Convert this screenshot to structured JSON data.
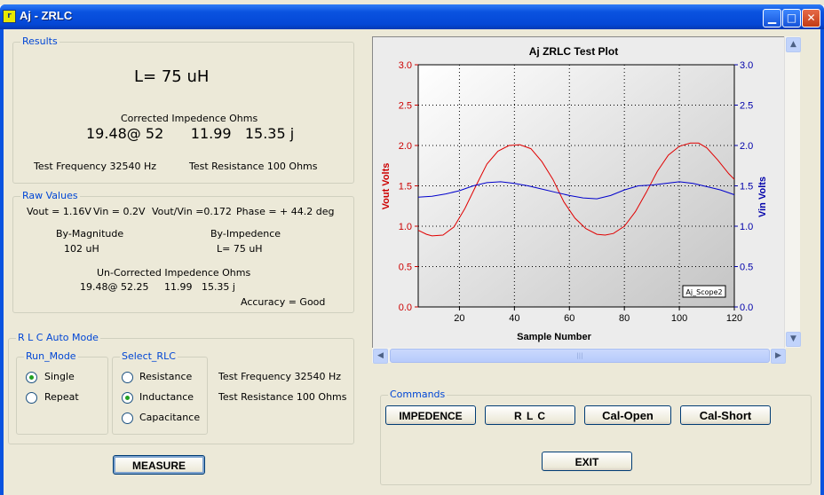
{
  "window": {
    "title": "Aj - ZRLC"
  },
  "results": {
    "legend": "Results",
    "value": "L= 75 uH",
    "corrected_label": "Corrected Impedence Ohms",
    "corrected_values": "19.48@ 52      11.99   15.35 j",
    "test_frequency": "Test Frequency  32540  Hz",
    "test_resistance": "Test Resistance  100 Ohms"
  },
  "raw": {
    "legend": "Raw Values",
    "vout": "Vout = 1.16V",
    "vin": "Vin = 0.2V",
    "ratio": "Vout/Vin =0.172",
    "phase": "Phase = + 44.2 deg",
    "by_magnitude_label": "By-Magnitude",
    "by_magnitude_value": "102 uH",
    "by_impedence_label": "By-Impedence",
    "by_impedence_value": "L= 75 uH",
    "uncorrected_label": "Un-Corrected Impedence Ohms",
    "uncorrected_values": "19.48@ 52.25     11.99   15.35 j",
    "accuracy": "Accuracy = Good"
  },
  "auto": {
    "legend": "R L C Auto Mode",
    "run_mode_legend": "Run_Mode",
    "single": "Single",
    "repeat": "Repeat",
    "run_mode_selected": "Single",
    "select_legend": "Select_RLC",
    "resistance": "Resistance",
    "inductance": "Inductance",
    "capacitance": "Capacitance",
    "select_selected": "Inductance",
    "test_frequency": "Test Frequency  32540  Hz",
    "test_resistance": "Test Resistance  100 Ohms",
    "measure": "MEASURE"
  },
  "commands": {
    "legend": "Commands",
    "impedence": "IMPEDENCE",
    "rlc": "R  L  C",
    "cal_open": "Cal-Open",
    "cal_short": "Cal-Short",
    "exit": "EXIT"
  },
  "chart_data": {
    "type": "line",
    "title": "Aj ZRLC Test Plot",
    "xlabel": "Sample Number",
    "ylabel": "Vout Volts",
    "y2label": "Vin Volts",
    "xlim": [
      5,
      120
    ],
    "ylim": [
      0,
      3
    ],
    "y2lim": [
      0,
      3
    ],
    "xticks": [
      20,
      40,
      60,
      80,
      100,
      120
    ],
    "yticks": [
      "0.0",
      "0.5",
      "1.0",
      "1.5",
      "2.0",
      "2.5",
      "3.0"
    ],
    "grid": true,
    "tag": "Aj_Scope2",
    "colors": {
      "vout": "#e00000",
      "vin": "#0000cc"
    },
    "series": [
      {
        "axis": "left",
        "x": [
          5,
          8,
          10,
          14,
          18,
          22,
          26,
          30,
          34,
          38,
          42,
          46,
          50,
          54,
          58,
          62,
          66,
          70,
          73,
          76,
          80,
          84,
          88,
          92,
          96,
          100,
          104,
          107,
          110,
          114,
          118,
          120
        ],
        "values": [
          0.95,
          0.9,
          0.88,
          0.89,
          0.99,
          1.22,
          1.5,
          1.77,
          1.93,
          2.0,
          2.01,
          1.96,
          1.8,
          1.58,
          1.3,
          1.1,
          0.97,
          0.9,
          0.89,
          0.91,
          1.0,
          1.18,
          1.42,
          1.68,
          1.88,
          1.99,
          2.03,
          2.03,
          1.97,
          1.82,
          1.65,
          1.58
        ]
      },
      {
        "axis": "right",
        "x": [
          5,
          10,
          15,
          20,
          25,
          30,
          35,
          40,
          45,
          50,
          55,
          60,
          65,
          70,
          75,
          80,
          85,
          90,
          95,
          100,
          105,
          110,
          115,
          120
        ],
        "values": [
          1.36,
          1.37,
          1.4,
          1.44,
          1.5,
          1.54,
          1.55,
          1.53,
          1.5,
          1.46,
          1.42,
          1.38,
          1.35,
          1.34,
          1.38,
          1.45,
          1.5,
          1.51,
          1.53,
          1.55,
          1.53,
          1.49,
          1.45,
          1.39
        ]
      }
    ]
  }
}
